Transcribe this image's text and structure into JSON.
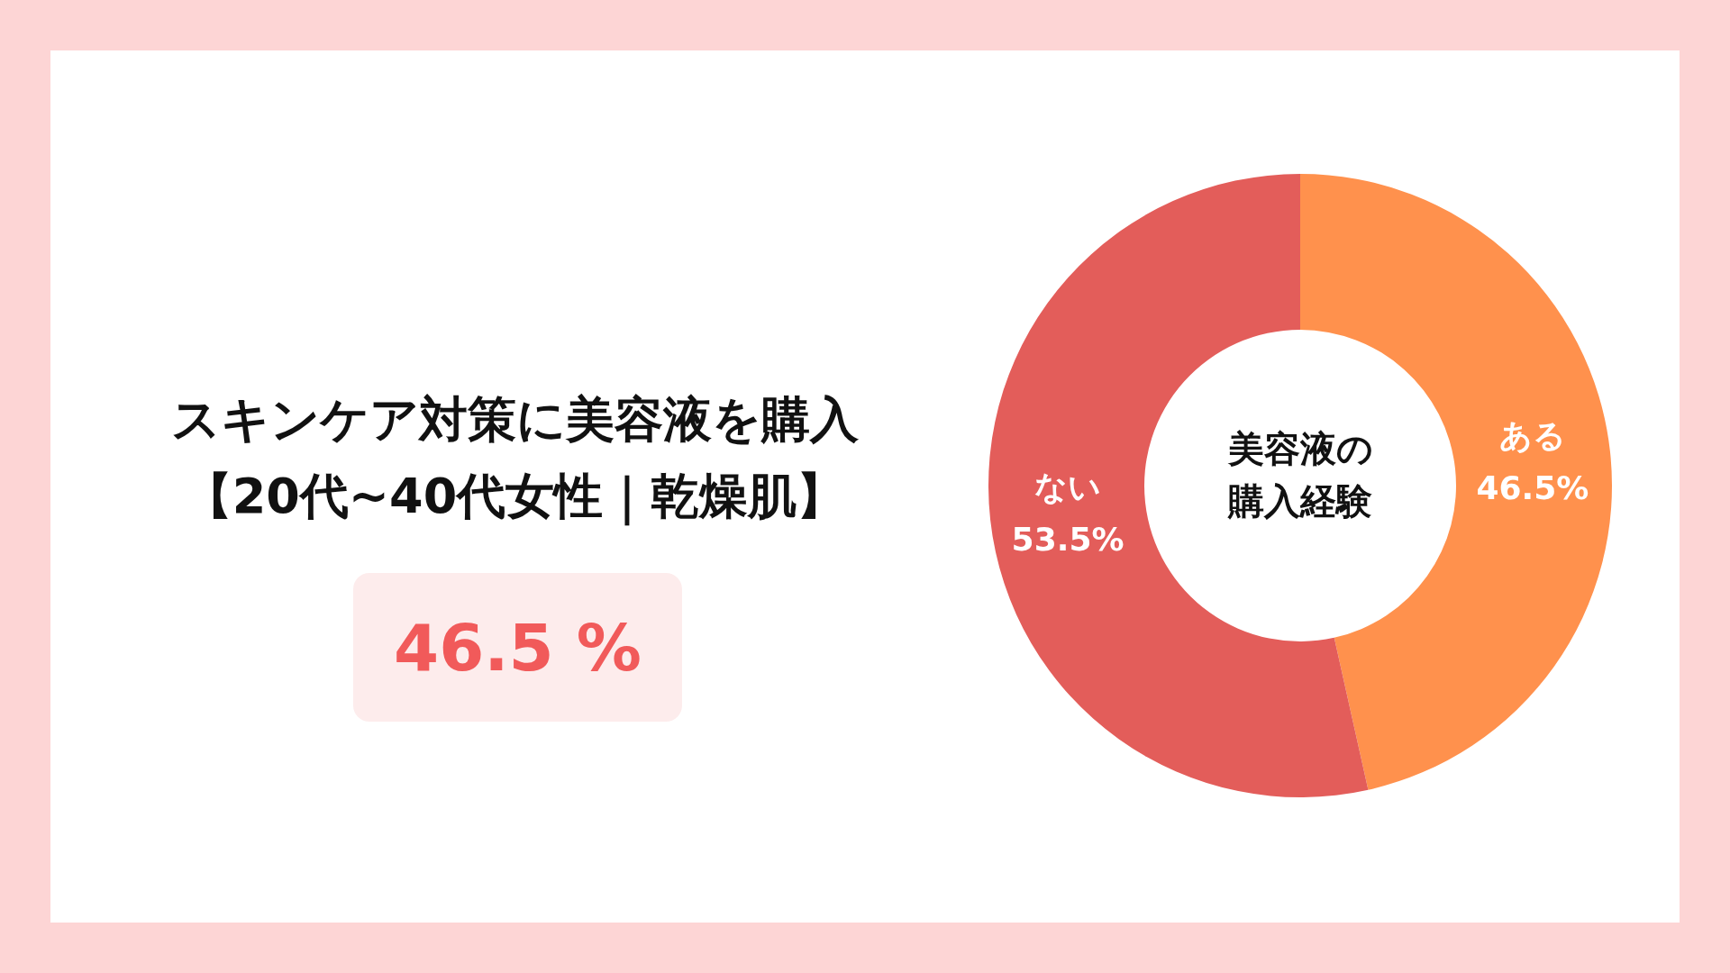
{
  "chart_data": {
    "type": "donut",
    "title": "スキンケア対策に美容液を購入",
    "subtitle": "【20代~40代女性｜乾燥肌】",
    "categories": [
      "ある",
      "ない"
    ],
    "values": [
      46.5,
      53.5
    ],
    "colors": [
      "#ff914d",
      "#e35d5a"
    ],
    "value_labels": [
      "46.5%",
      "53.5%"
    ],
    "annotations": [
      "美容液の購入経験",
      "46.5 %"
    ],
    "legend": false
  }
}
